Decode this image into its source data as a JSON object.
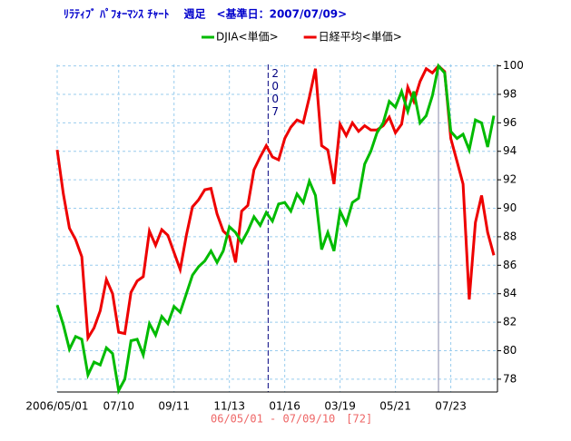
{
  "chart_data": {
    "type": "line",
    "title": "ﾘﾗﾃｨﾌﾞ ﾊﾟﾌｫｰﾏﾝｽ ﾁｬｰﾄ　 週足　<基準日：2007/07/09>",
    "footer": "06/05/01 - 07/09/10　[72]",
    "annotation": "2007",
    "categories": [
      "2006/05/01",
      null,
      null,
      null,
      null,
      null,
      null,
      null,
      null,
      null,
      "07/10",
      null,
      null,
      null,
      null,
      null,
      null,
      null,
      null,
      "09/11",
      null,
      null,
      null,
      null,
      null,
      null,
      null,
      null,
      "11/13",
      null,
      null,
      null,
      null,
      null,
      null,
      null,
      null,
      "01/16",
      null,
      null,
      null,
      null,
      null,
      null,
      null,
      null,
      "03/19",
      null,
      null,
      null,
      null,
      null,
      null,
      null,
      null,
      "05/21",
      null,
      null,
      null,
      null,
      null,
      null,
      null,
      null,
      "07/23",
      null,
      null,
      null,
      null,
      null,
      null,
      null
    ],
    "series": [
      {
        "name": "DJIA<単価>",
        "color": "#00bb00",
        "values": [
          83.2,
          81.8,
          80.1,
          81.0,
          80.8,
          78.3,
          79.2,
          79.0,
          80.2,
          79.8,
          77.2,
          78.0,
          80.7,
          80.8,
          79.7,
          81.9,
          81.1,
          82.4,
          81.9,
          83.1,
          82.7,
          84.0,
          85.3,
          85.9,
          86.3,
          87.0,
          86.2,
          87.0,
          88.7,
          88.3,
          87.6,
          88.4,
          89.4,
          88.8,
          89.7,
          89.1,
          90.3,
          90.4,
          89.8,
          91.0,
          90.4,
          91.9,
          90.9,
          87.1,
          88.3,
          87.0,
          89.8,
          88.9,
          90.4,
          90.7,
          93.1,
          94.0,
          95.3,
          96.0,
          97.5,
          97.1,
          98.2,
          96.8,
          98.2,
          96.0,
          96.5,
          97.9,
          100,
          99.5,
          95.4,
          94.9,
          95.2,
          94.1,
          96.2,
          96.0,
          94.3,
          96.5
        ]
      },
      {
        "name": "日経平均<単価>",
        "color": "#ee0000",
        "values": [
          94.1,
          91.0,
          88.6,
          87.8,
          86.6,
          80.9,
          81.6,
          82.8,
          85.0,
          84.0,
          81.3,
          81.2,
          84.1,
          84.9,
          85.2,
          88.4,
          87.4,
          88.5,
          88.1,
          86.9,
          85.7,
          88.1,
          90.1,
          90.6,
          91.3,
          91.4,
          89.6,
          88.4,
          88.0,
          86.2,
          89.8,
          90.2,
          92.7,
          93.6,
          94.4,
          93.6,
          93.4,
          94.9,
          95.7,
          96.2,
          96.0,
          97.8,
          99.8,
          94.4,
          94.1,
          91.7,
          95.9,
          95.1,
          96.0,
          95.4,
          95.8,
          95.5,
          95.5,
          95.8,
          96.4,
          95.3,
          95.9,
          98.5,
          97.5,
          98.9,
          99.8,
          99.5,
          100,
          99.6,
          94.9,
          93.3,
          91.7,
          83.6,
          89.0,
          90.9,
          88.3,
          86.7
        ]
      }
    ],
    "ylim": [
      77.1,
      100.1
    ],
    "yticks": [
      78,
      80,
      82,
      84,
      86,
      88,
      90,
      92,
      94,
      96,
      98,
      100
    ],
    "grid": true
  }
}
